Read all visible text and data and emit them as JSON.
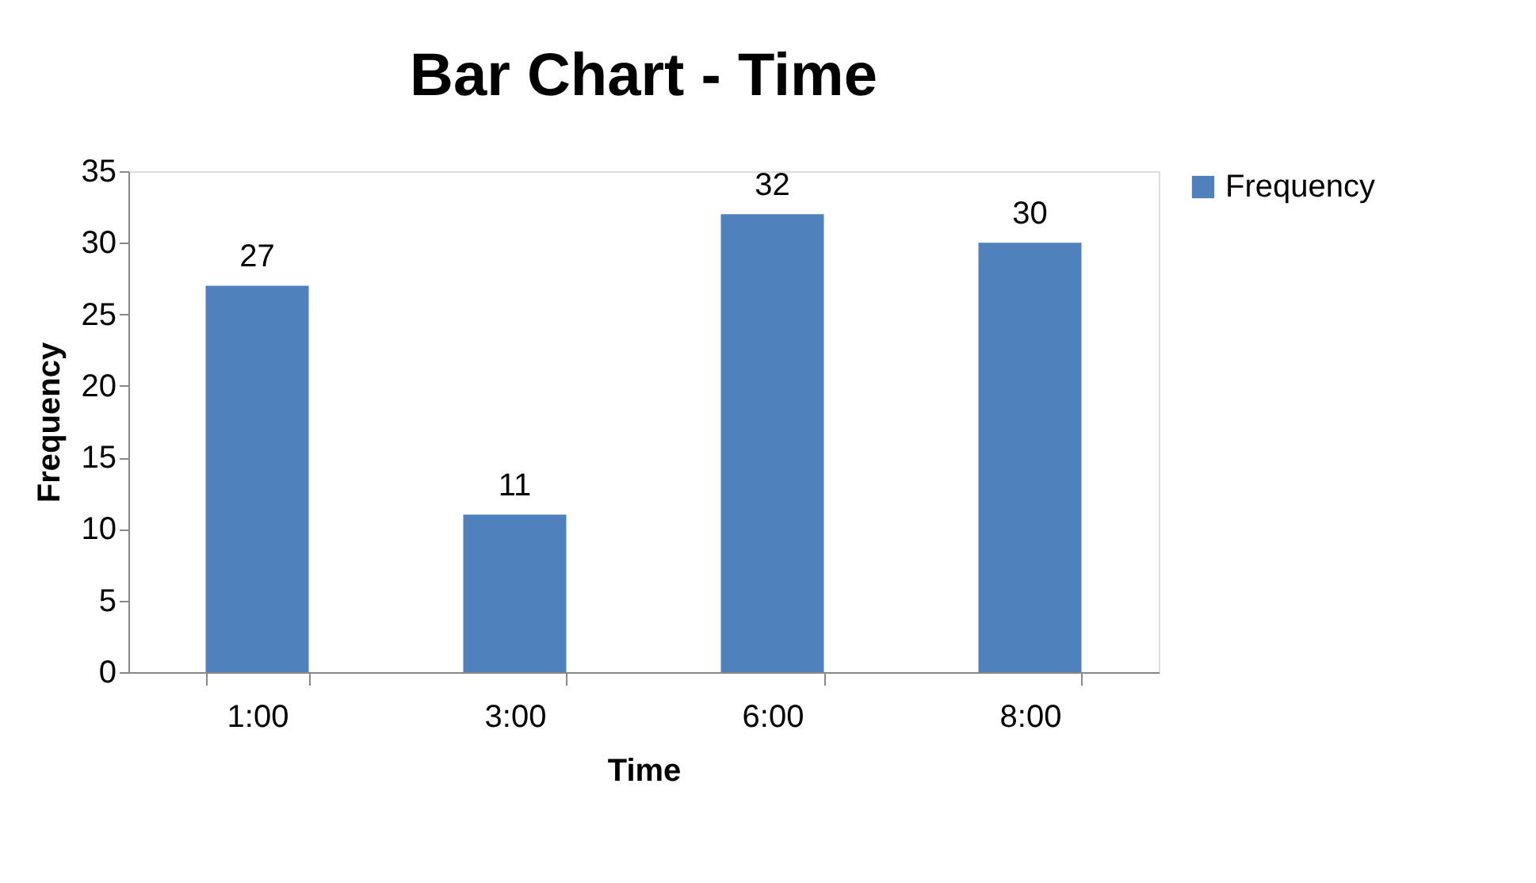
{
  "chart_data": {
    "type": "bar",
    "title": "Bar Chart - Time",
    "xlabel": "Time",
    "ylabel": "Frequency",
    "categories": [
      "1:00",
      "3:00",
      "6:00",
      "8:00"
    ],
    "series": [
      {
        "name": "Frequency",
        "color": "#4f81bd",
        "values": [
          27,
          11,
          32,
          30
        ]
      }
    ],
    "ylim": [
      0,
      35
    ],
    "yticks": [
      0,
      5,
      10,
      15,
      20,
      25,
      30,
      35
    ],
    "grid": false,
    "legend": "right",
    "data_labels": true
  }
}
